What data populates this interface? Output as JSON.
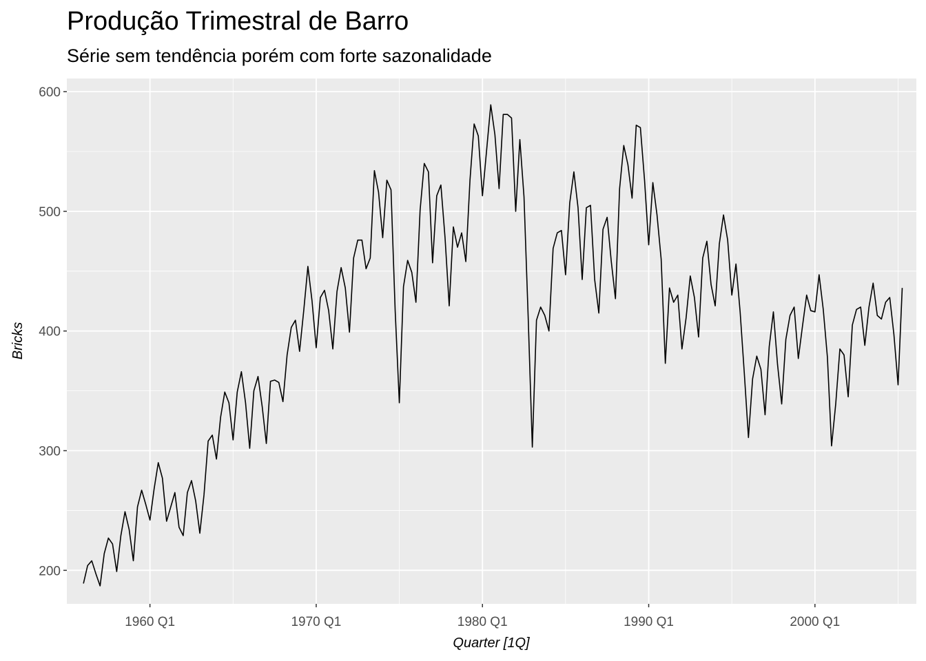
{
  "chart_data": {
    "type": "line",
    "title": "Produção Trimestral de Barro",
    "subtitle": "Série sem tendência porém com forte sazonalidade",
    "xlabel": "Quarter [1Q]",
    "ylabel": "Bricks",
    "x_start": "1956 Q1",
    "frequency": "quarterly",
    "xlim": [
      1955.0,
      2006.1
    ],
    "ylim": [
      172,
      611
    ],
    "x_ticks": [
      {
        "label": "1960 Q1",
        "value": 1960
      },
      {
        "label": "1970 Q1",
        "value": 1970
      },
      {
        "label": "1980 Q1",
        "value": 1980
      },
      {
        "label": "1990 Q1",
        "value": 1990
      },
      {
        "label": "2000 Q1",
        "value": 2000
      }
    ],
    "y_ticks": [
      200,
      300,
      400,
      500,
      600
    ],
    "grid": true,
    "line_color": "#000000",
    "panel_color": "#ebebeb",
    "grid_color": "#ffffff",
    "series": [
      {
        "values": [
          189,
          204,
          208,
          197,
          187,
          214,
          227,
          222,
          199,
          229,
          249,
          234,
          208,
          253,
          267,
          255,
          242,
          268,
          290,
          277,
          241,
          253,
          265,
          236,
          229,
          265,
          275,
          258,
          231,
          263,
          308,
          313,
          293,
          328,
          349,
          340,
          309,
          349,
          366,
          340,
          302,
          350,
          362,
          337,
          306,
          358,
          359,
          357,
          341,
          380,
          403,
          409,
          383,
          417,
          454,
          425,
          386,
          428,
          434,
          417,
          385,
          433,
          453,
          436,
          399,
          461,
          476,
          476,
          452,
          461,
          534,
          516,
          478,
          526,
          518,
          417,
          340,
          437,
          459,
          449,
          424,
          501,
          540,
          533,
          457,
          513,
          522,
          478,
          421,
          487,
          470,
          482,
          458,
          526,
          573,
          563,
          513,
          551,
          589,
          564,
          519,
          581,
          581,
          578,
          500,
          560,
          512,
          412,
          303,
          409,
          420,
          413,
          400,
          469,
          482,
          484,
          447,
          507,
          533,
          503,
          443,
          503,
          505,
          443,
          415,
          485,
          495,
          458,
          427,
          519,
          555,
          539,
          511,
          572,
          570,
          526,
          472,
          524,
          497,
          460,
          373,
          436,
          424,
          430,
          385,
          411,
          446,
          428,
          395,
          461,
          475,
          439,
          421,
          473,
          497,
          476,
          430,
          456,
          416,
          365,
          311,
          360,
          379,
          368,
          330,
          387,
          416,
          372,
          339,
          393,
          413,
          420,
          377,
          404,
          430,
          417,
          416,
          447,
          418,
          378,
          304,
          339,
          385,
          380,
          345,
          405,
          418,
          420,
          388,
          420,
          440,
          413,
          410,
          424,
          428,
          397,
          355,
          436
        ]
      }
    ]
  }
}
